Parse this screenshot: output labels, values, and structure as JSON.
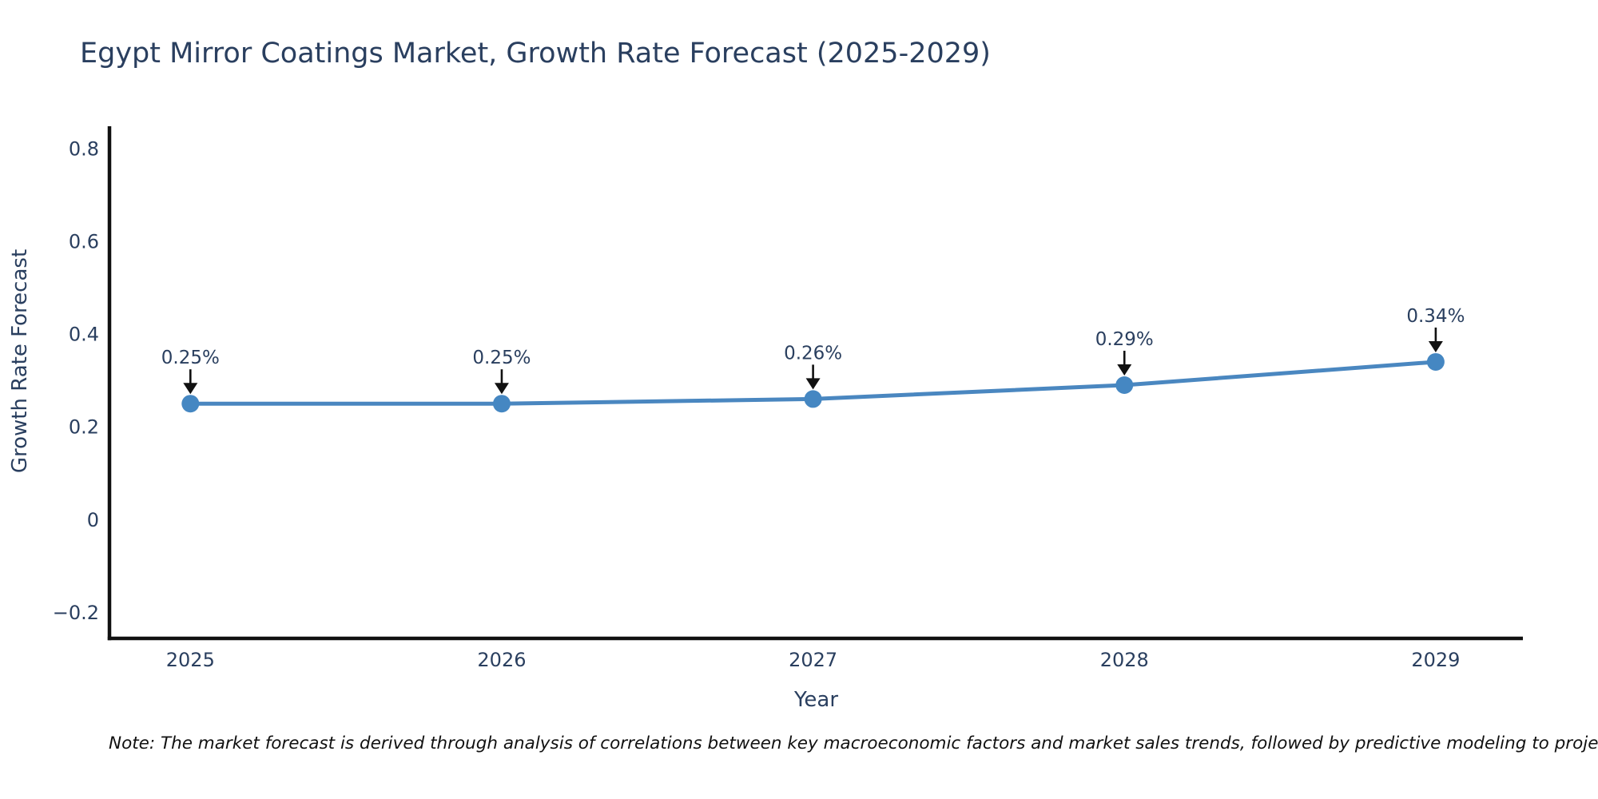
{
  "chart_data": {
    "type": "line",
    "title": "Egypt Mirror Coatings Market, Growth Rate Forecast (2025-2029)",
    "xlabel": "Year",
    "ylabel": "Growth Rate Forecast",
    "x": [
      2025,
      2026,
      2027,
      2028,
      2029
    ],
    "series": [
      {
        "name": "Growth Rate Forecast",
        "values": [
          0.25,
          0.25,
          0.26,
          0.29,
          0.34
        ]
      }
    ],
    "point_labels": [
      "0.25%",
      "0.25%",
      "0.26%",
      "0.29%",
      "0.34%"
    ],
    "xticks": {
      "values": [
        2025,
        2026,
        2027,
        2028,
        2029
      ],
      "labels": [
        "2025",
        "2026",
        "2027",
        "2028",
        "2029"
      ]
    },
    "yticks": {
      "values": [
        -0.2,
        0,
        0.2,
        0.4,
        0.6,
        0.8
      ],
      "labels": [
        "−0.2",
        "0",
        "0.2",
        "0.4",
        "0.6",
        "0.8"
      ]
    },
    "xlim": [
      2024.74,
      2029.28
    ],
    "ylim": [
      -0.256,
      0.848
    ],
    "grid": false,
    "legend": "none",
    "colors": {
      "line": "#4a87c0",
      "marker": "#4587c2",
      "arrow": "#111111",
      "text": "#2a3f5f",
      "axis": "#111111",
      "note": "#111111",
      "background": "#ffffff"
    },
    "note": "Note: The market forecast is derived through analysis of correlations between key macroeconomic factors and market sales trends, followed by predictive modeling to project future sa"
  }
}
